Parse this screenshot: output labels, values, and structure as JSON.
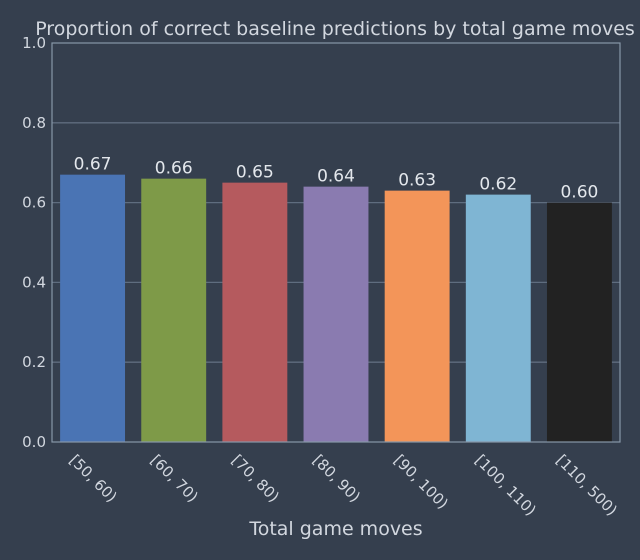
{
  "chart_data": {
    "type": "bar",
    "title": "Proportion of correct baseline predictions by total game moves",
    "xlabel": "Total game moves",
    "ylabel": "",
    "ylim": [
      0,
      1.0
    ],
    "yticks": [
      "0.0",
      "0.2",
      "0.4",
      "0.6",
      "0.8",
      "1.0"
    ],
    "grid": "horizontal",
    "categories": [
      "[50, 60)",
      "[60, 70)",
      "[70, 80)",
      "[80, 90)",
      "[90, 100)",
      "[100, 110)",
      "[110, 500)"
    ],
    "values": [
      0.67,
      0.66,
      0.65,
      0.64,
      0.63,
      0.62,
      0.6
    ],
    "value_labels": [
      "0.67",
      "0.66",
      "0.65",
      "0.64",
      "0.63",
      "0.62",
      "0.60"
    ],
    "colors": [
      "#4a74b4",
      "#7e9a48",
      "#b55a5e",
      "#8a7bb0",
      "#f39559",
      "#7fb5d3",
      "#222222"
    ]
  }
}
